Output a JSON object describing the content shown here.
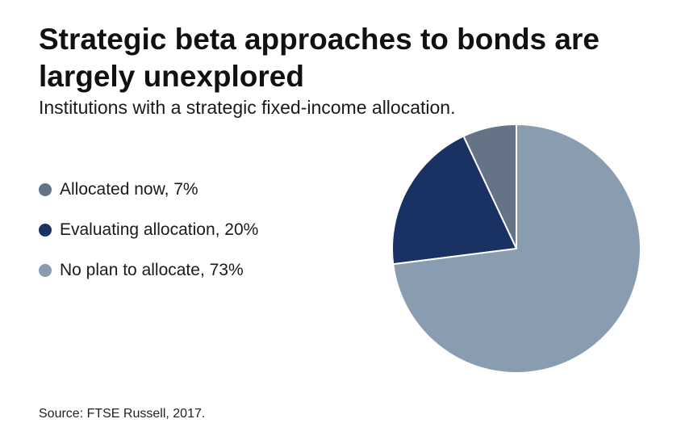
{
  "title": "Strategic beta approaches to bonds are largely unexplored",
  "subtitle": "Institutions with a strategic fixed-income allocation.",
  "source": "Source: FTSE Russell, 2017.",
  "legend": [
    {
      "label": "Allocated now, 7%",
      "color": "#657387"
    },
    {
      "label": "Evaluating allocation, 20%",
      "color": "#1a3263"
    },
    {
      "label": "No plan to allocate, 73%",
      "color": "#8a9db0"
    }
  ],
  "chart_data": {
    "type": "pie",
    "title": "Strategic beta approaches to bonds are largely unexplored",
    "subtitle": "Institutions with a strategic fixed-income allocation.",
    "legend_position": "left",
    "slices": [
      {
        "label": "Allocated now",
        "value": 7,
        "color": "#657387"
      },
      {
        "label": "Evaluating allocation",
        "value": 20,
        "color": "#1a3263"
      },
      {
        "label": "No plan to allocate",
        "value": 73,
        "color": "#8a9db0"
      }
    ]
  }
}
